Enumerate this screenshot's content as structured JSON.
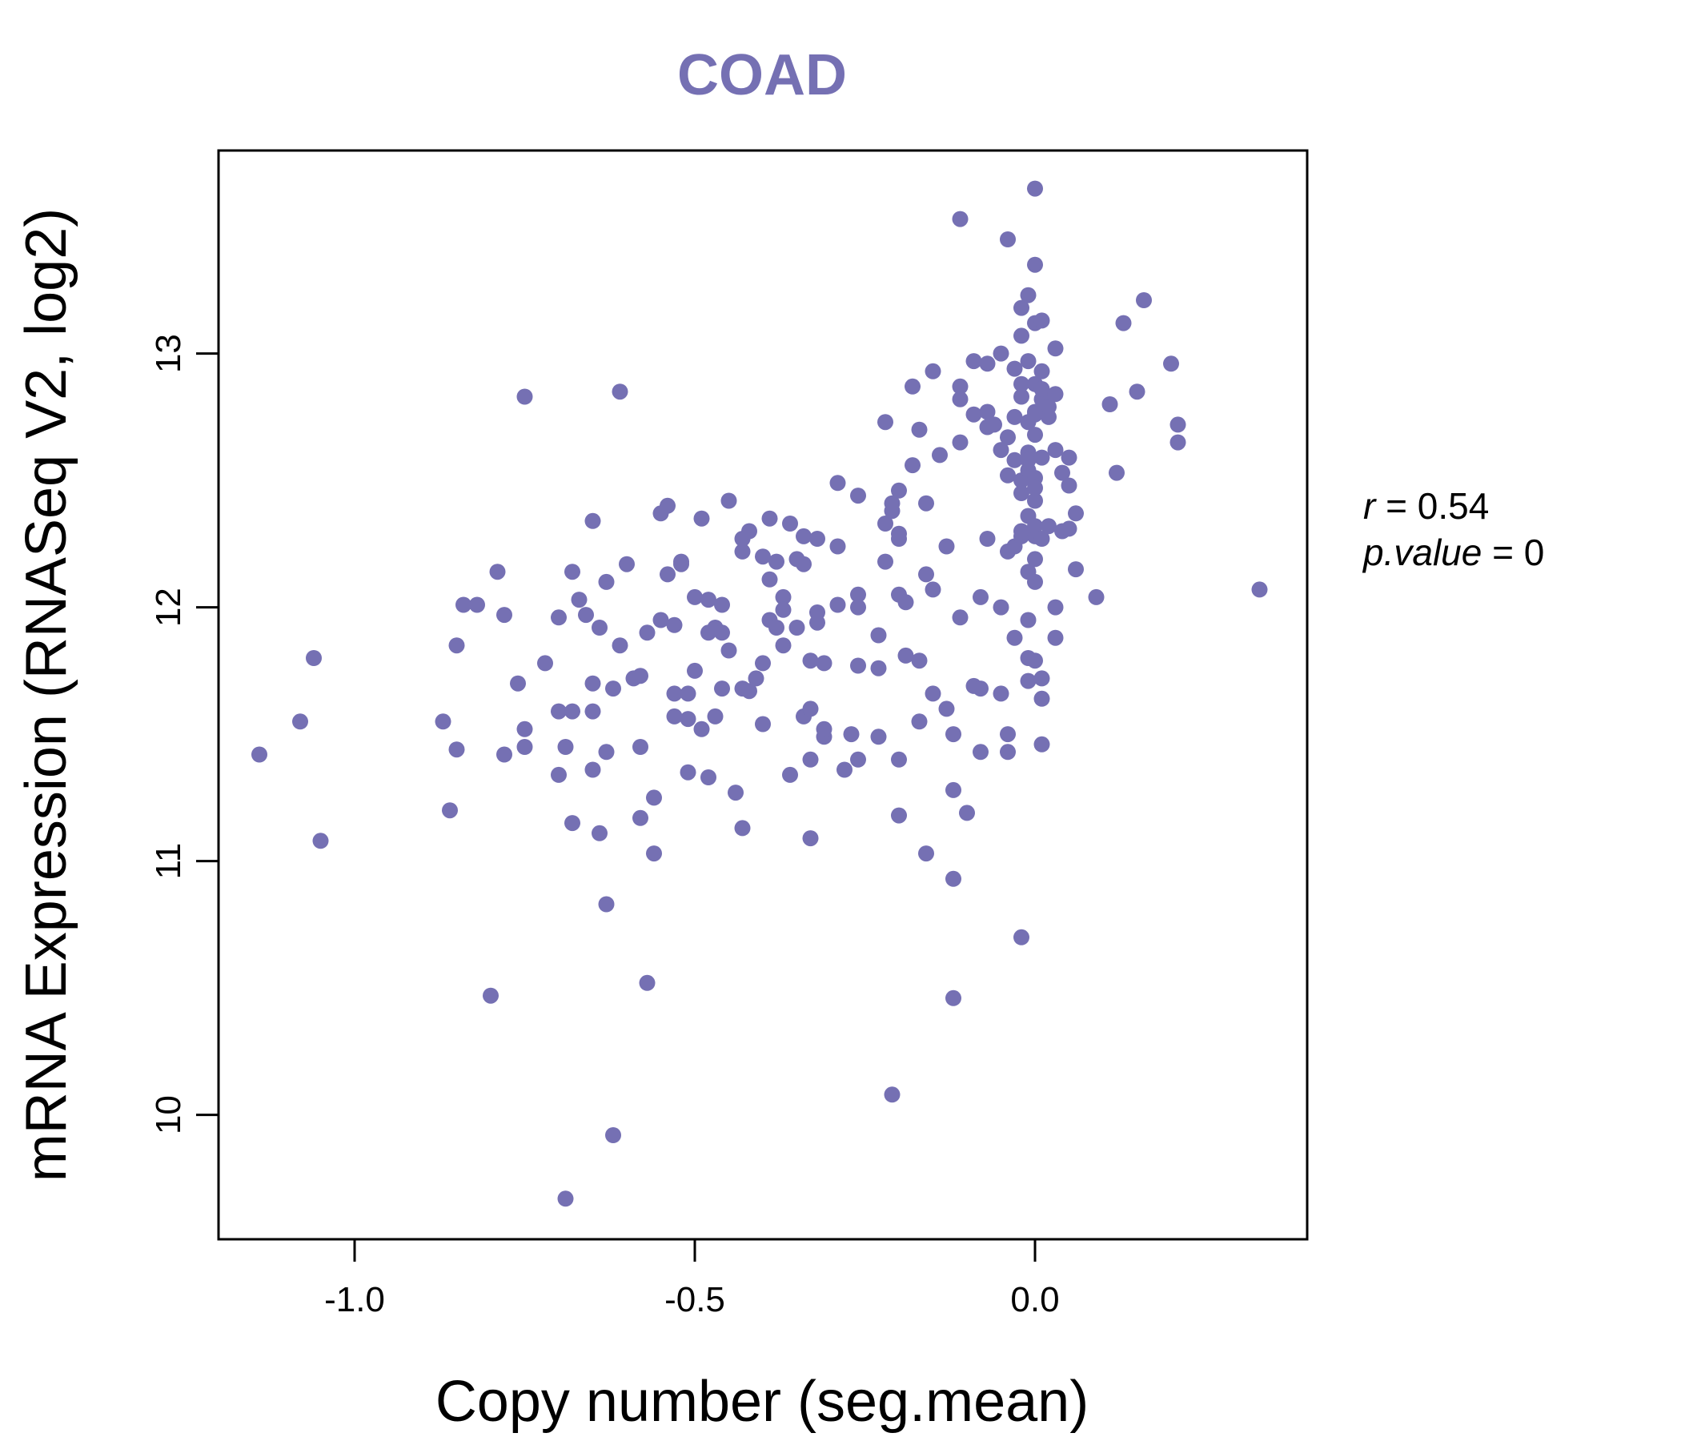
{
  "chart_data": {
    "type": "scatter",
    "title": "COAD",
    "xlabel": "Copy number (seg.mean)",
    "ylabel": "mRNA Expression (RNASeq V2, log2)",
    "xlim": [
      -1.2,
      0.4
    ],
    "ylim": [
      9.51,
      13.8
    ],
    "xticks": [
      -1.0,
      -0.5,
      0.0
    ],
    "xtick_labels": [
      "-1.0",
      "-0.5",
      "0.0"
    ],
    "yticks": [
      10,
      11,
      12,
      13
    ],
    "ytick_labels": [
      "10",
      "11",
      "12",
      "13"
    ],
    "grid": false,
    "legend": "none",
    "point_color": "#7570b3",
    "annotations": {
      "r_symbol": "r",
      "r_value": "0.54",
      "p_symbol": "p.value",
      "p_value": "0"
    },
    "points": [
      [
        -1.14,
        11.42
      ],
      [
        -1.08,
        11.55
      ],
      [
        -1.06,
        11.8
      ],
      [
        -1.05,
        11.08
      ],
      [
        -0.87,
        11.55
      ],
      [
        -0.86,
        11.2
      ],
      [
        -0.85,
        11.44
      ],
      [
        -0.85,
        11.85
      ],
      [
        -0.84,
        12.01
      ],
      [
        -0.82,
        12.01
      ],
      [
        -0.8,
        10.47
      ],
      [
        -0.79,
        12.14
      ],
      [
        -0.78,
        11.97
      ],
      [
        -0.78,
        11.42
      ],
      [
        -0.76,
        11.7
      ],
      [
        -0.75,
        11.45
      ],
      [
        -0.75,
        11.52
      ],
      [
        -0.75,
        12.83
      ],
      [
        -0.72,
        11.78
      ],
      [
        -0.7,
        11.96
      ],
      [
        -0.7,
        11.59
      ],
      [
        -0.7,
        11.34
      ],
      [
        -0.69,
        9.67
      ],
      [
        -0.69,
        11.45
      ],
      [
        -0.68,
        11.15
      ],
      [
        -0.68,
        12.14
      ],
      [
        -0.68,
        11.59
      ],
      [
        -0.67,
        12.03
      ],
      [
        -0.66,
        11.97
      ],
      [
        -0.65,
        12.34
      ],
      [
        -0.65,
        11.7
      ],
      [
        -0.65,
        11.59
      ],
      [
        -0.65,
        11.36
      ],
      [
        -0.64,
        11.92
      ],
      [
        -0.64,
        11.11
      ],
      [
        -0.63,
        10.83
      ],
      [
        -0.63,
        11.43
      ],
      [
        -0.63,
        12.1
      ],
      [
        -0.62,
        9.92
      ],
      [
        -0.62,
        11.68
      ],
      [
        -0.61,
        11.85
      ],
      [
        -0.61,
        12.85
      ],
      [
        -0.6,
        12.17
      ],
      [
        -0.59,
        11.72
      ],
      [
        -0.58,
        11.73
      ],
      [
        -0.58,
        11.45
      ],
      [
        -0.58,
        11.17
      ],
      [
        -0.57,
        10.52
      ],
      [
        -0.57,
        11.9
      ],
      [
        -0.56,
        11.25
      ],
      [
        -0.56,
        11.03
      ],
      [
        -0.55,
        12.37
      ],
      [
        -0.55,
        11.95
      ],
      [
        -0.54,
        12.13
      ],
      [
        -0.54,
        12.4
      ],
      [
        -0.53,
        11.66
      ],
      [
        -0.53,
        11.57
      ],
      [
        -0.53,
        11.93
      ],
      [
        -0.52,
        12.18
      ],
      [
        -0.52,
        12.17
      ],
      [
        -0.51,
        11.66
      ],
      [
        -0.51,
        11.56
      ],
      [
        -0.51,
        11.35
      ],
      [
        -0.5,
        12.04
      ],
      [
        -0.5,
        11.75
      ],
      [
        -0.49,
        12.35
      ],
      [
        -0.49,
        11.52
      ],
      [
        -0.48,
        12.03
      ],
      [
        -0.48,
        11.9
      ],
      [
        -0.48,
        11.33
      ],
      [
        -0.47,
        11.57
      ],
      [
        -0.47,
        11.92
      ],
      [
        -0.46,
        12.01
      ],
      [
        -0.46,
        11.68
      ],
      [
        -0.46,
        11.9
      ],
      [
        -0.45,
        11.83
      ],
      [
        -0.45,
        12.42
      ],
      [
        -0.44,
        11.27
      ],
      [
        -0.43,
        11.13
      ],
      [
        -0.43,
        11.68
      ],
      [
        -0.43,
        12.22
      ],
      [
        -0.43,
        12.27
      ],
      [
        -0.42,
        11.67
      ],
      [
        -0.42,
        12.3
      ],
      [
        -0.41,
        11.72
      ],
      [
        -0.4,
        11.78
      ],
      [
        -0.4,
        11.54
      ],
      [
        -0.4,
        12.2
      ],
      [
        -0.39,
        12.11
      ],
      [
        -0.39,
        11.95
      ],
      [
        -0.39,
        12.35
      ],
      [
        -0.38,
        11.92
      ],
      [
        -0.38,
        12.18
      ],
      [
        -0.37,
        11.85
      ],
      [
        -0.37,
        12.04
      ],
      [
        -0.37,
        11.99
      ],
      [
        -0.36,
        12.33
      ],
      [
        -0.36,
        11.34
      ],
      [
        -0.35,
        11.92
      ],
      [
        -0.35,
        12.19
      ],
      [
        -0.34,
        12.17
      ],
      [
        -0.34,
        11.57
      ],
      [
        -0.34,
        12.28
      ],
      [
        -0.33,
        11.79
      ],
      [
        -0.33,
        11.6
      ],
      [
        -0.33,
        11.09
      ],
      [
        -0.33,
        11.4
      ],
      [
        -0.32,
        12.27
      ],
      [
        -0.32,
        11.94
      ],
      [
        -0.32,
        11.98
      ],
      [
        -0.31,
        11.78
      ],
      [
        -0.31,
        11.49
      ],
      [
        -0.31,
        11.52
      ],
      [
        -0.29,
        12.01
      ],
      [
        -0.29,
        12.24
      ],
      [
        -0.29,
        12.49
      ],
      [
        -0.28,
        11.36
      ],
      [
        -0.27,
        11.5
      ],
      [
        -0.26,
        12.05
      ],
      [
        -0.26,
        11.77
      ],
      [
        -0.26,
        11.4
      ],
      [
        -0.26,
        12.44
      ],
      [
        -0.26,
        12.0
      ],
      [
        -0.23,
        11.49
      ],
      [
        -0.23,
        11.89
      ],
      [
        -0.23,
        11.76
      ],
      [
        -0.22,
        12.33
      ],
      [
        -0.22,
        12.73
      ],
      [
        -0.22,
        12.18
      ],
      [
        -0.21,
        12.38
      ],
      [
        -0.21,
        10.08
      ],
      [
        -0.21,
        12.41
      ],
      [
        -0.2,
        12.46
      ],
      [
        -0.2,
        12.29
      ],
      [
        -0.2,
        11.4
      ],
      [
        -0.2,
        11.18
      ],
      [
        -0.2,
        12.27
      ],
      [
        -0.2,
        12.05
      ],
      [
        -0.19,
        12.02
      ],
      [
        -0.19,
        11.81
      ],
      [
        -0.18,
        12.87
      ],
      [
        -0.18,
        12.56
      ],
      [
        -0.17,
        11.79
      ],
      [
        -0.17,
        11.55
      ],
      [
        -0.17,
        12.7
      ],
      [
        -0.16,
        11.03
      ],
      [
        -0.16,
        12.41
      ],
      [
        -0.16,
        12.13
      ],
      [
        -0.15,
        11.66
      ],
      [
        -0.15,
        12.93
      ],
      [
        -0.15,
        12.07
      ],
      [
        -0.14,
        12.6
      ],
      [
        -0.13,
        11.6
      ],
      [
        -0.13,
        12.24
      ],
      [
        -0.12,
        11.28
      ],
      [
        -0.12,
        11.5
      ],
      [
        -0.12,
        10.93
      ],
      [
        -0.12,
        10.46
      ],
      [
        -0.11,
        11.96
      ],
      [
        -0.11,
        12.87
      ],
      [
        -0.11,
        12.82
      ],
      [
        -0.11,
        12.65
      ],
      [
        -0.11,
        13.53
      ],
      [
        -0.1,
        11.19
      ],
      [
        -0.09,
        11.69
      ],
      [
        -0.09,
        12.76
      ],
      [
        -0.09,
        12.97
      ],
      [
        -0.08,
        12.04
      ],
      [
        -0.08,
        11.68
      ],
      [
        -0.08,
        11.43
      ],
      [
        -0.07,
        12.77
      ],
      [
        -0.07,
        12.96
      ],
      [
        -0.07,
        12.71
      ],
      [
        -0.07,
        12.27
      ],
      [
        -0.06,
        12.72
      ],
      [
        -0.05,
        11.66
      ],
      [
        -0.05,
        12.62
      ],
      [
        -0.05,
        12.0
      ],
      [
        -0.05,
        13.0
      ],
      [
        -0.04,
        12.67
      ],
      [
        -0.04,
        12.52
      ],
      [
        -0.04,
        11.5
      ],
      [
        -0.04,
        11.43
      ],
      [
        -0.04,
        12.22
      ],
      [
        -0.04,
        13.45
      ],
      [
        -0.03,
        12.58
      ],
      [
        -0.03,
        12.75
      ],
      [
        -0.03,
        12.24
      ],
      [
        -0.03,
        12.94
      ],
      [
        -0.03,
        11.88
      ],
      [
        -0.02,
        12.88
      ],
      [
        -0.02,
        12.83
      ],
      [
        -0.02,
        12.5
      ],
      [
        -0.02,
        12.45
      ],
      [
        -0.02,
        13.07
      ],
      [
        -0.02,
        12.28
      ],
      [
        -0.02,
        12.3
      ],
      [
        -0.02,
        10.7
      ],
      [
        -0.02,
        13.18
      ],
      [
        -0.01,
        11.8
      ],
      [
        -0.01,
        12.14
      ],
      [
        -0.01,
        12.61
      ],
      [
        -0.01,
        12.54
      ],
      [
        -0.01,
        12.73
      ],
      [
        -0.01,
        13.23
      ],
      [
        -0.01,
        12.36
      ],
      [
        -0.01,
        11.95
      ],
      [
        -0.01,
        12.58
      ],
      [
        -0.01,
        11.71
      ],
      [
        -0.01,
        12.97
      ],
      [
        0.0,
        11.79
      ],
      [
        0.0,
        12.19
      ],
      [
        0.0,
        12.28
      ],
      [
        0.0,
        12.88
      ],
      [
        0.0,
        12.42
      ],
      [
        0.0,
        12.68
      ],
      [
        0.0,
        12.51
      ],
      [
        0.0,
        12.77
      ],
      [
        0.0,
        13.12
      ],
      [
        0.0,
        12.1
      ],
      [
        0.0,
        13.35
      ],
      [
        0.0,
        13.65
      ],
      [
        0.0,
        12.47
      ],
      [
        0.0,
        12.32
      ],
      [
        0.0,
        12.76
      ],
      [
        0.01,
        11.72
      ],
      [
        0.01,
        11.64
      ],
      [
        0.01,
        11.46
      ],
      [
        0.01,
        12.59
      ],
      [
        0.01,
        12.27
      ],
      [
        0.01,
        12.82
      ],
      [
        0.01,
        13.13
      ],
      [
        0.01,
        12.86
      ],
      [
        0.01,
        12.93
      ],
      [
        0.02,
        12.75
      ],
      [
        0.02,
        12.32
      ],
      [
        0.02,
        12.79
      ],
      [
        0.03,
        11.88
      ],
      [
        0.03,
        12.0
      ],
      [
        0.03,
        13.02
      ],
      [
        0.03,
        12.62
      ],
      [
        0.03,
        12.84
      ],
      [
        0.04,
        12.3
      ],
      [
        0.04,
        12.53
      ],
      [
        0.05,
        12.48
      ],
      [
        0.05,
        12.59
      ],
      [
        0.05,
        12.31
      ],
      [
        0.06,
        12.15
      ],
      [
        0.06,
        12.37
      ],
      [
        0.09,
        12.04
      ],
      [
        0.11,
        12.8
      ],
      [
        0.12,
        12.53
      ],
      [
        0.13,
        13.12
      ],
      [
        0.15,
        12.85
      ],
      [
        0.16,
        13.21
      ],
      [
        0.2,
        12.96
      ],
      [
        0.21,
        12.72
      ],
      [
        0.21,
        12.65
      ],
      [
        0.33,
        12.07
      ]
    ]
  }
}
